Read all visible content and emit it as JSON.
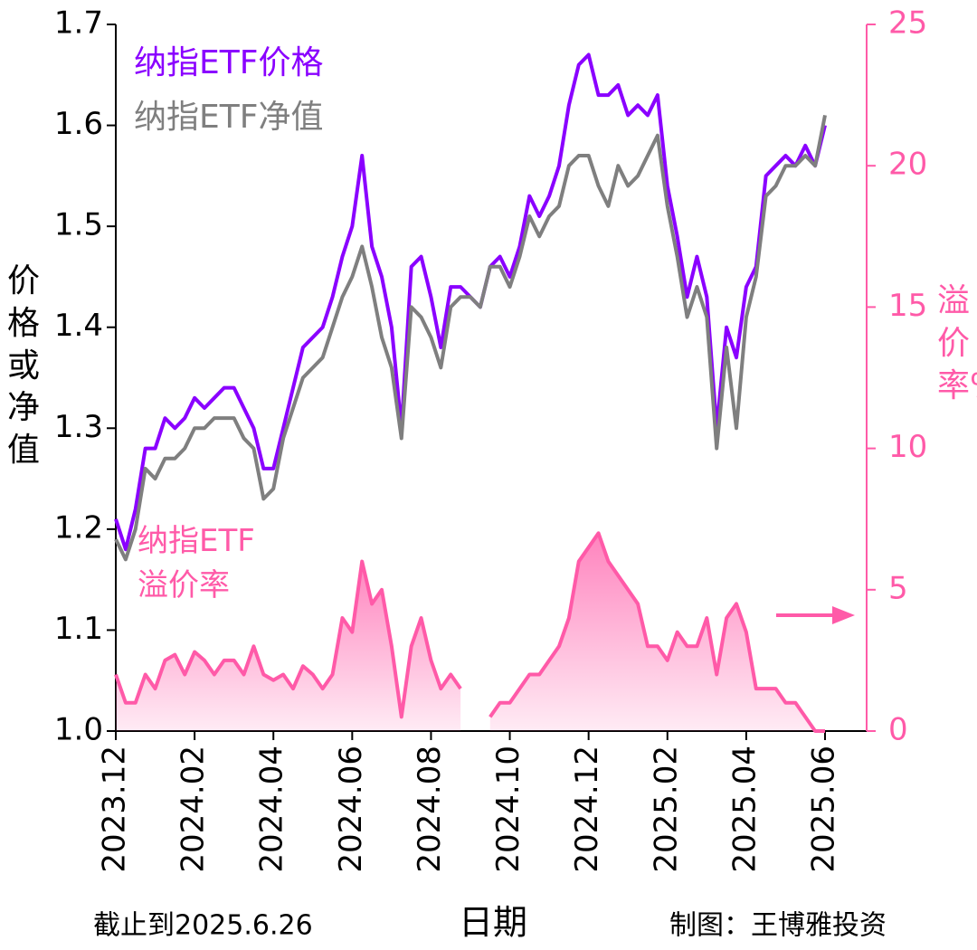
{
  "chart_data": {
    "type": "line",
    "categories": [
      "2023.12",
      null,
      null,
      null,
      null,
      null,
      null,
      null,
      "2024.02",
      null,
      null,
      null,
      null,
      null,
      null,
      null,
      "2024.04",
      null,
      null,
      null,
      null,
      null,
      null,
      null,
      "2024.06",
      null,
      null,
      null,
      null,
      null,
      null,
      null,
      "2024.08",
      null,
      null,
      null,
      null,
      null,
      null,
      null,
      "2024.10",
      null,
      null,
      null,
      null,
      null,
      null,
      null,
      "2024.12",
      null,
      null,
      null,
      null,
      null,
      null,
      null,
      "2025.02",
      null,
      null,
      null,
      null,
      null,
      null,
      null,
      "2025.04",
      null,
      null,
      null,
      null,
      null,
      null,
      null,
      "2025.06"
    ],
    "series": [
      {
        "name": "纳指ETF价格",
        "color": "#8a00ff",
        "axis": "y",
        "values": [
          1.21,
          1.18,
          1.22,
          1.28,
          1.28,
          1.31,
          1.3,
          1.31,
          1.33,
          1.32,
          1.33,
          1.34,
          1.34,
          1.32,
          1.3,
          1.26,
          1.26,
          1.3,
          1.34,
          1.38,
          1.39,
          1.4,
          1.43,
          1.47,
          1.5,
          1.57,
          1.48,
          1.45,
          1.4,
          1.3,
          1.46,
          1.47,
          1.43,
          1.38,
          1.44,
          1.44,
          1.43,
          1.42,
          1.46,
          1.47,
          1.45,
          1.48,
          1.53,
          1.51,
          1.53,
          1.56,
          1.62,
          1.66,
          1.67,
          1.63,
          1.63,
          1.64,
          1.61,
          1.62,
          1.61,
          1.63,
          1.54,
          1.49,
          1.43,
          1.47,
          1.43,
          1.3,
          1.4,
          1.37,
          1.44,
          1.46,
          1.55,
          1.56,
          1.57,
          1.56,
          1.58,
          1.56,
          1.6
        ]
      },
      {
        "name": "纳指ETF净值",
        "color": "#7f7f7f",
        "axis": "y",
        "values": [
          1.19,
          1.17,
          1.2,
          1.26,
          1.25,
          1.27,
          1.27,
          1.28,
          1.3,
          1.3,
          1.31,
          1.31,
          1.31,
          1.29,
          1.28,
          1.23,
          1.24,
          1.29,
          1.32,
          1.35,
          1.36,
          1.37,
          1.4,
          1.43,
          1.45,
          1.48,
          1.44,
          1.39,
          1.36,
          1.29,
          1.42,
          1.41,
          1.39,
          1.36,
          1.42,
          1.43,
          1.43,
          1.42,
          1.46,
          1.46,
          1.44,
          1.47,
          1.51,
          1.49,
          1.51,
          1.52,
          1.56,
          1.57,
          1.57,
          1.54,
          1.52,
          1.56,
          1.54,
          1.55,
          1.57,
          1.59,
          1.52,
          1.47,
          1.41,
          1.44,
          1.41,
          1.28,
          1.38,
          1.3,
          1.41,
          1.45,
          1.53,
          1.54,
          1.56,
          1.56,
          1.57,
          1.56,
          1.61
        ]
      },
      {
        "name": "纳指ETF溢价率",
        "color": "#ff5aa8",
        "axis": "y2",
        "area": true,
        "values": [
          2,
          1,
          1,
          2,
          1.5,
          2.5,
          2.7,
          2,
          2.8,
          2.5,
          2,
          2.5,
          2.5,
          2,
          3,
          2,
          1.8,
          2,
          1.5,
          2.3,
          2,
          1.5,
          2,
          4,
          3.5,
          6,
          4.5,
          5,
          3,
          0.5,
          3,
          4,
          2.5,
          1.5,
          2,
          1.5,
          null,
          null,
          0.5,
          1,
          1,
          1.5,
          2,
          2,
          2.5,
          3,
          4,
          6,
          6.5,
          7,
          6,
          5.5,
          5,
          4.5,
          3,
          3,
          2.5,
          3.5,
          3,
          3,
          4,
          2,
          4,
          4.5,
          3.5,
          1.5,
          1.5,
          1.5,
          1,
          1,
          0.5,
          0,
          0
        ]
      }
    ],
    "ylim": [
      1.0,
      1.7
    ],
    "yticks": [
      {
        "value": 1.0,
        "label": "1.0"
      },
      1.1,
      1.2,
      1.3,
      1.4,
      1.5,
      1.6,
      1.7
    ],
    "y2lim": [
      0,
      25
    ],
    "y2ticks": [
      0,
      5,
      10,
      15,
      20,
      25
    ],
    "ylabel": "价格或净值",
    "y2label": "溢价率%",
    "xlabel": "日期",
    "note_left": "截止到2025.6.26",
    "note_right": "制图：王博雅投资"
  }
}
